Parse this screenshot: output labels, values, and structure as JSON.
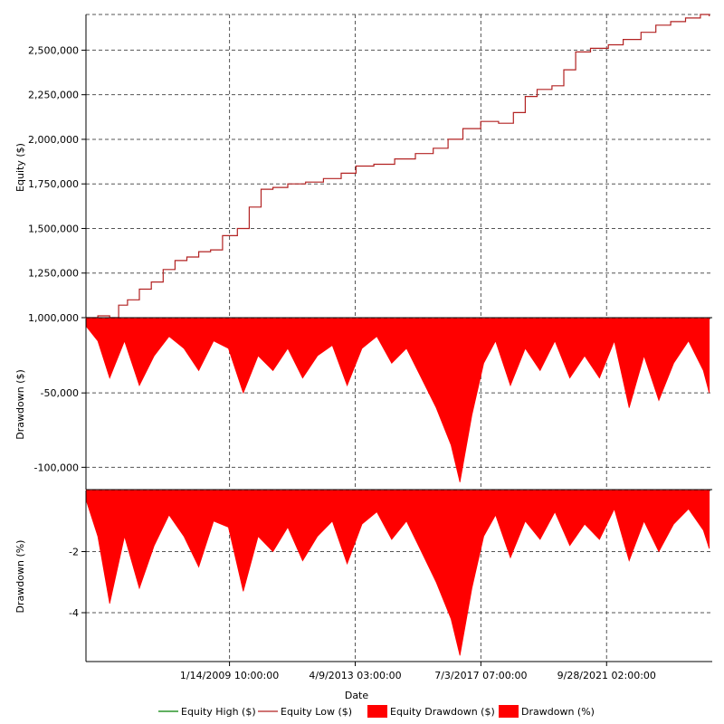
{
  "chart_data": {
    "type": "line",
    "xlabel": "Date",
    "x_ticks": [
      "1/14/2009 10:00:00",
      "4/9/2013 03:00:00",
      "7/3/2017 07:00:00",
      "9/28/2021 02:00:00"
    ],
    "x_range_years": [
      2004.2,
      2025.3
    ],
    "grid": true,
    "legend_position": "bottom",
    "legend": [
      {
        "label": "Equity High ($)",
        "color": "#008000",
        "style": "line"
      },
      {
        "label": "Equity Low ($)",
        "color": "#b22222",
        "style": "line"
      },
      {
        "label": "Equity Drawdown ($)",
        "color": "#ff0000",
        "style": "box"
      },
      {
        "label": "Drawdown (%)",
        "color": "#ff0000",
        "style": "box"
      }
    ],
    "panels": [
      {
        "id": "equity",
        "ylabel": "Equity ($)",
        "ylim": [
          1000000,
          2700000
        ],
        "y_ticks": [
          {
            "value": 1000000,
            "label": "1,000,000"
          },
          {
            "value": 1250000,
            "label": "1,250,000"
          },
          {
            "value": 1500000,
            "label": "1,500,000"
          },
          {
            "value": 1750000,
            "label": "1,750,000"
          },
          {
            "value": 2000000,
            "label": "2,000,000"
          },
          {
            "value": 2250000,
            "label": "2,250,000"
          },
          {
            "value": 2500000,
            "label": "2,500,000"
          }
        ],
        "series": [
          {
            "name": "Equity Low ($)",
            "color": "#b22222",
            "points": [
              [
                2004.2,
                1000000
              ],
              [
                2004.6,
                1010000
              ],
              [
                2005.0,
                1000000
              ],
              [
                2005.3,
                1070000
              ],
              [
                2005.6,
                1100000
              ],
              [
                2006.0,
                1160000
              ],
              [
                2006.4,
                1200000
              ],
              [
                2006.8,
                1270000
              ],
              [
                2007.2,
                1320000
              ],
              [
                2007.6,
                1340000
              ],
              [
                2008.0,
                1370000
              ],
              [
                2008.4,
                1380000
              ],
              [
                2008.8,
                1460000
              ],
              [
                2009.3,
                1500000
              ],
              [
                2009.7,
                1620000
              ],
              [
                2010.1,
                1720000
              ],
              [
                2010.5,
                1730000
              ],
              [
                2011.0,
                1750000
              ],
              [
                2011.6,
                1760000
              ],
              [
                2012.2,
                1780000
              ],
              [
                2012.8,
                1810000
              ],
              [
                2013.3,
                1850000
              ],
              [
                2013.9,
                1860000
              ],
              [
                2014.6,
                1890000
              ],
              [
                2015.3,
                1920000
              ],
              [
                2015.9,
                1950000
              ],
              [
                2016.4,
                2000000
              ],
              [
                2016.9,
                2060000
              ],
              [
                2017.5,
                2100000
              ],
              [
                2018.1,
                2090000
              ],
              [
                2018.6,
                2150000
              ],
              [
                2019.0,
                2240000
              ],
              [
                2019.4,
                2280000
              ],
              [
                2019.9,
                2300000
              ],
              [
                2020.3,
                2390000
              ],
              [
                2020.7,
                2490000
              ],
              [
                2021.2,
                2510000
              ],
              [
                2021.8,
                2530000
              ],
              [
                2022.3,
                2560000
              ],
              [
                2022.9,
                2600000
              ],
              [
                2023.4,
                2640000
              ],
              [
                2023.9,
                2660000
              ],
              [
                2024.4,
                2680000
              ],
              [
                2024.9,
                2700000
              ],
              [
                2025.2,
                2690000
              ]
            ]
          }
        ]
      },
      {
        "id": "drawdown_usd",
        "ylabel": "Drawdown ($)",
        "ylim": [
          -115000,
          0
        ],
        "y_ticks": [
          {
            "value": -50000,
            "label": "-50,000"
          },
          {
            "value": -100000,
            "label": "-100,000"
          }
        ],
        "series": [
          {
            "name": "Equity Drawdown ($)",
            "color": "#ff0000",
            "points": [
              [
                2004.2,
                -5000
              ],
              [
                2004.6,
                -15000
              ],
              [
                2005.0,
                -40000
              ],
              [
                2005.5,
                -15000
              ],
              [
                2006.0,
                -45000
              ],
              [
                2006.5,
                -25000
              ],
              [
                2007.0,
                -12000
              ],
              [
                2007.5,
                -20000
              ],
              [
                2008.0,
                -35000
              ],
              [
                2008.5,
                -15000
              ],
              [
                2009.0,
                -20000
              ],
              [
                2009.5,
                -50000
              ],
              [
                2010.0,
                -25000
              ],
              [
                2010.5,
                -35000
              ],
              [
                2011.0,
                -20000
              ],
              [
                2011.5,
                -40000
              ],
              [
                2012.0,
                -25000
              ],
              [
                2012.5,
                -18000
              ],
              [
                2013.0,
                -45000
              ],
              [
                2013.5,
                -20000
              ],
              [
                2014.0,
                -12000
              ],
              [
                2014.5,
                -30000
              ],
              [
                2015.0,
                -20000
              ],
              [
                2015.5,
                -40000
              ],
              [
                2016.0,
                -60000
              ],
              [
                2016.5,
                -85000
              ],
              [
                2016.8,
                -110000
              ],
              [
                2017.2,
                -65000
              ],
              [
                2017.6,
                -30000
              ],
              [
                2018.0,
                -15000
              ],
              [
                2018.5,
                -45000
              ],
              [
                2019.0,
                -20000
              ],
              [
                2019.5,
                -35000
              ],
              [
                2020.0,
                -15000
              ],
              [
                2020.5,
                -40000
              ],
              [
                2021.0,
                -25000
              ],
              [
                2021.5,
                -40000
              ],
              [
                2022.0,
                -15000
              ],
              [
                2022.5,
                -60000
              ],
              [
                2023.0,
                -25000
              ],
              [
                2023.5,
                -55000
              ],
              [
                2024.0,
                -30000
              ],
              [
                2024.5,
                -15000
              ],
              [
                2025.0,
                -35000
              ],
              [
                2025.2,
                -50000
              ]
            ]
          }
        ]
      },
      {
        "id": "drawdown_pct",
        "ylabel": "Drawdown (%)",
        "ylim": [
          -5.6,
          0
        ],
        "y_ticks": [
          {
            "value": -2,
            "label": "-2"
          },
          {
            "value": -4,
            "label": "-4"
          }
        ],
        "series": [
          {
            "name": "Drawdown (%)",
            "color": "#ff0000",
            "points": [
              [
                2004.2,
                -0.3
              ],
              [
                2004.6,
                -1.5
              ],
              [
                2005.0,
                -3.7
              ],
              [
                2005.5,
                -1.5
              ],
              [
                2006.0,
                -3.2
              ],
              [
                2006.5,
                -1.8
              ],
              [
                2007.0,
                -0.8
              ],
              [
                2007.5,
                -1.5
              ],
              [
                2008.0,
                -2.5
              ],
              [
                2008.5,
                -1.0
              ],
              [
                2009.0,
                -1.2
              ],
              [
                2009.5,
                -3.3
              ],
              [
                2010.0,
                -1.5
              ],
              [
                2010.5,
                -2.0
              ],
              [
                2011.0,
                -1.2
              ],
              [
                2011.5,
                -2.3
              ],
              [
                2012.0,
                -1.5
              ],
              [
                2012.5,
                -1.0
              ],
              [
                2013.0,
                -2.4
              ],
              [
                2013.5,
                -1.1
              ],
              [
                2014.0,
                -0.7
              ],
              [
                2014.5,
                -1.6
              ],
              [
                2015.0,
                -1.0
              ],
              [
                2015.5,
                -2.0
              ],
              [
                2016.0,
                -3.0
              ],
              [
                2016.5,
                -4.2
              ],
              [
                2016.8,
                -5.4
              ],
              [
                2017.2,
                -3.2
              ],
              [
                2017.6,
                -1.5
              ],
              [
                2018.0,
                -0.8
              ],
              [
                2018.5,
                -2.2
              ],
              [
                2019.0,
                -1.0
              ],
              [
                2019.5,
                -1.6
              ],
              [
                2020.0,
                -0.7
              ],
              [
                2020.5,
                -1.8
              ],
              [
                2021.0,
                -1.1
              ],
              [
                2021.5,
                -1.6
              ],
              [
                2022.0,
                -0.6
              ],
              [
                2022.5,
                -2.3
              ],
              [
                2023.0,
                -1.0
              ],
              [
                2023.5,
                -2.0
              ],
              [
                2024.0,
                -1.1
              ],
              [
                2024.5,
                -0.6
              ],
              [
                2025.0,
                -1.3
              ],
              [
                2025.2,
                -1.9
              ]
            ]
          }
        ]
      }
    ]
  }
}
